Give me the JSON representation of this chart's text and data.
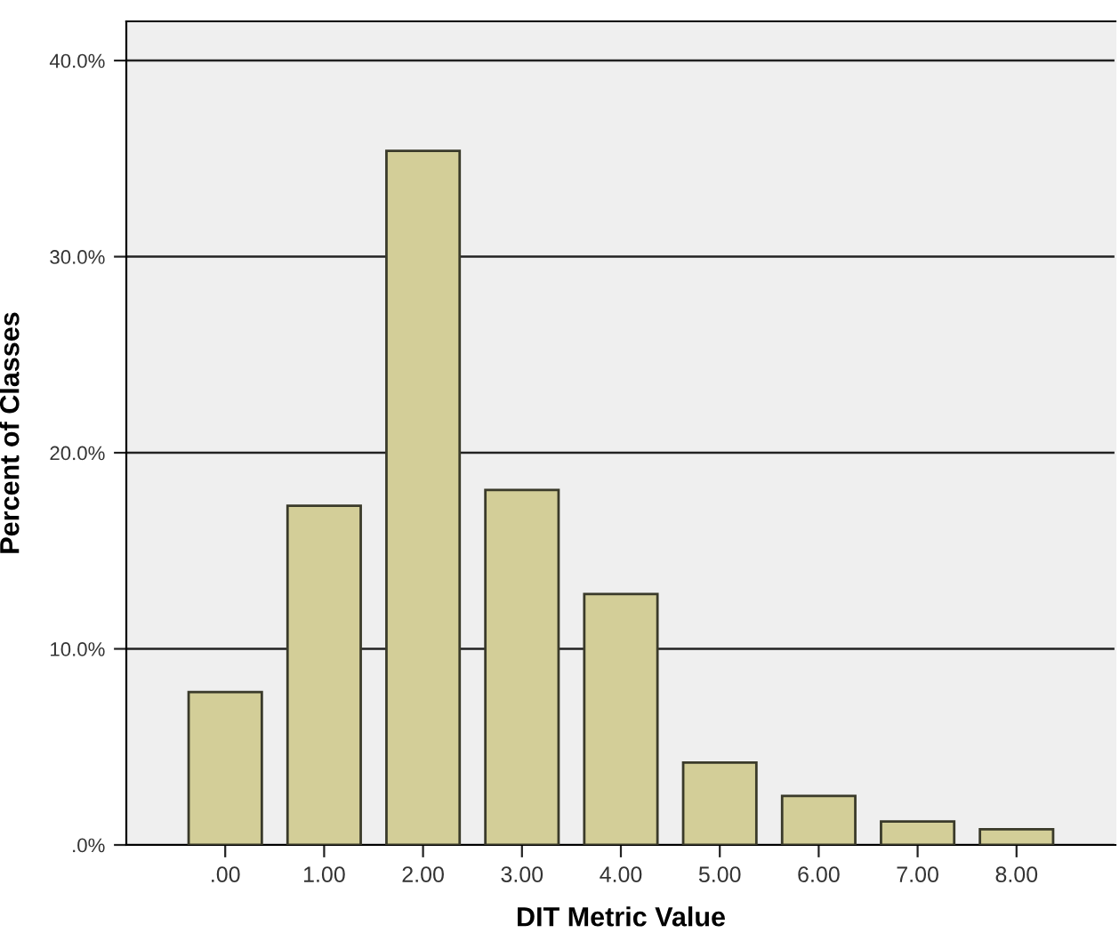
{
  "chart_data": {
    "type": "bar",
    "xlabel": "DIT Metric Value",
    "ylabel": "Percent of Classes",
    "categories": [
      ".00",
      "1.00",
      "2.00",
      "3.00",
      "4.00",
      "5.00",
      "6.00",
      "7.00",
      "8.00"
    ],
    "values": [
      7.8,
      17.3,
      35.4,
      18.1,
      12.8,
      4.2,
      2.5,
      1.2,
      0.8
    ],
    "color": "#d3ce98",
    "ylim": [
      0,
      42
    ],
    "yticks": [
      {
        "value": 0,
        "label": ".0%"
      },
      {
        "value": 10,
        "label": "10.0%"
      },
      {
        "value": 20,
        "label": "20.0%"
      },
      {
        "value": 30,
        "label": "30.0%"
      },
      {
        "value": 40,
        "label": "40.0%"
      }
    ],
    "grid": "y"
  }
}
